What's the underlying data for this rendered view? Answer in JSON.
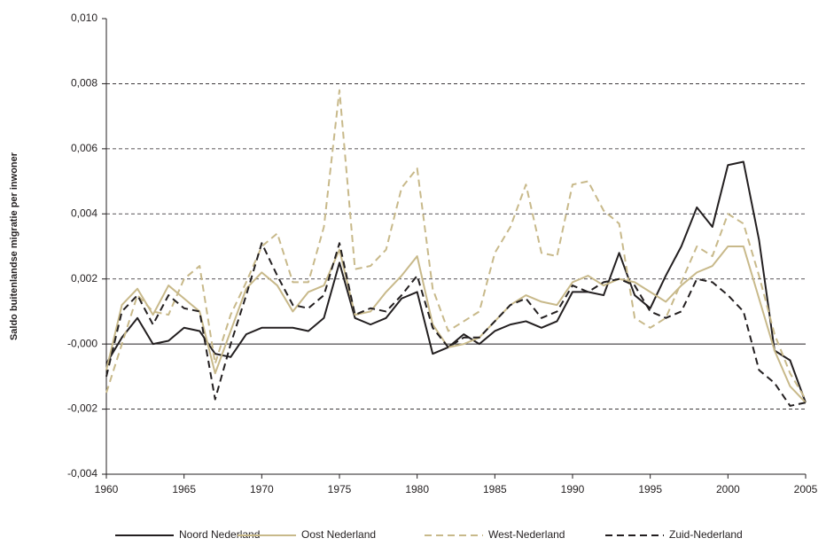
{
  "chart_data": {
    "type": "line",
    "y_label": "Saldo buitenlandse migratie per inwoner",
    "x": [
      1960,
      1961,
      1962,
      1963,
      1964,
      1965,
      1966,
      1967,
      1968,
      1969,
      1970,
      1971,
      1972,
      1973,
      1974,
      1975,
      1976,
      1977,
      1978,
      1979,
      1980,
      1981,
      1982,
      1983,
      1984,
      1985,
      1986,
      1987,
      1988,
      1989,
      1990,
      1991,
      1992,
      1993,
      1994,
      1995,
      1996,
      1997,
      1998,
      1999,
      2000,
      2001,
      2002,
      2003,
      2004,
      2005
    ],
    "xlim": [
      1960,
      2005
    ],
    "xticks": [
      1960,
      1965,
      1970,
      1975,
      1980,
      1985,
      1990,
      1995,
      2000,
      2005
    ],
    "ylim": [
      -0.004,
      0.01
    ],
    "yticks": [
      {
        "value": -0.004,
        "label": "-0,004"
      },
      {
        "value": -0.002,
        "label": "-0,002"
      },
      {
        "value": 0,
        "label": "-0,000"
      },
      {
        "value": 0.002,
        "label": "0,002"
      },
      {
        "value": 0.004,
        "label": "0,004"
      },
      {
        "value": 0.006,
        "label": "0,006"
      },
      {
        "value": 0.008,
        "label": "0,008"
      },
      {
        "value": 0.01,
        "label": "0,010"
      }
    ],
    "grid": true,
    "legend": "bottom",
    "series": [
      {
        "name": "Noord Nederland",
        "color": "#231f20",
        "dashed": false,
        "values": [
          -0.0006,
          0.0002,
          0.0008,
          0.0,
          0.0001,
          0.0005,
          0.0004,
          -0.0003,
          -0.0004,
          0.0003,
          0.0005,
          0.0005,
          0.0005,
          0.0004,
          0.0008,
          0.0025,
          0.0008,
          0.0006,
          0.0008,
          0.0014,
          0.0016,
          -0.0003,
          -0.0001,
          0.0003,
          0.0,
          0.0004,
          0.0006,
          0.0007,
          0.0005,
          0.0007,
          0.0016,
          0.0016,
          0.0015,
          0.0028,
          0.0015,
          0.0011,
          0.0021,
          0.003,
          0.0042,
          0.0036,
          0.0055,
          0.0056,
          0.0032,
          -0.0002,
          -0.0005,
          -0.0018
        ]
      },
      {
        "name": "Oost Nederland",
        "color": "#c8b98a",
        "dashed": false,
        "values": [
          -0.0008,
          0.0012,
          0.0017,
          0.0009,
          0.0018,
          0.0014,
          0.001,
          -0.0009,
          0.0004,
          0.0017,
          0.0022,
          0.0018,
          0.001,
          0.0016,
          0.0018,
          0.0029,
          0.0009,
          0.001,
          0.0016,
          0.0021,
          0.0027,
          0.0006,
          -0.0001,
          0.0,
          0.0002,
          0.0007,
          0.0012,
          0.0015,
          0.0013,
          0.0012,
          0.0019,
          0.0021,
          0.0018,
          0.002,
          0.0019,
          0.0016,
          0.0013,
          0.0018,
          0.0022,
          0.0024,
          0.003,
          0.003,
          0.0014,
          -0.0002,
          -0.0013,
          -0.0018
        ]
      },
      {
        "name": "West-Nederland",
        "color": "#c8b98a",
        "dashed": true,
        "values": [
          -0.0015,
          0.0,
          0.0015,
          0.001,
          0.0009,
          0.002,
          0.0024,
          -0.0006,
          0.0009,
          0.0019,
          0.003,
          0.0034,
          0.0019,
          0.0019,
          0.0036,
          0.0078,
          0.0023,
          0.0024,
          0.0029,
          0.0048,
          0.0054,
          0.0017,
          0.0004,
          0.0007,
          0.001,
          0.0028,
          0.0036,
          0.0049,
          0.0028,
          0.0027,
          0.0049,
          0.005,
          0.0041,
          0.0037,
          0.0008,
          0.0005,
          0.0008,
          0.0019,
          0.003,
          0.0027,
          0.004,
          0.0037,
          0.0021,
          0.0003,
          -0.0009,
          -0.0017
        ]
      },
      {
        "name": "Zuid-Nederland",
        "color": "#231f20",
        "dashed": true,
        "values": [
          -0.001,
          0.001,
          0.0015,
          0.0006,
          0.0015,
          0.0011,
          0.001,
          -0.0017,
          0.0,
          0.0015,
          0.0031,
          0.0021,
          0.0012,
          0.0011,
          0.0015,
          0.0031,
          0.0009,
          0.0011,
          0.001,
          0.0015,
          0.0021,
          0.0005,
          -0.0001,
          0.0002,
          0.0002,
          0.0007,
          0.0012,
          0.0014,
          0.0008,
          0.001,
          0.0018,
          0.0016,
          0.0019,
          0.002,
          0.0018,
          0.001,
          0.0008,
          0.001,
          0.002,
          0.0019,
          0.0015,
          0.001,
          -0.0008,
          -0.0012,
          -0.0019,
          -0.0018
        ]
      }
    ]
  }
}
